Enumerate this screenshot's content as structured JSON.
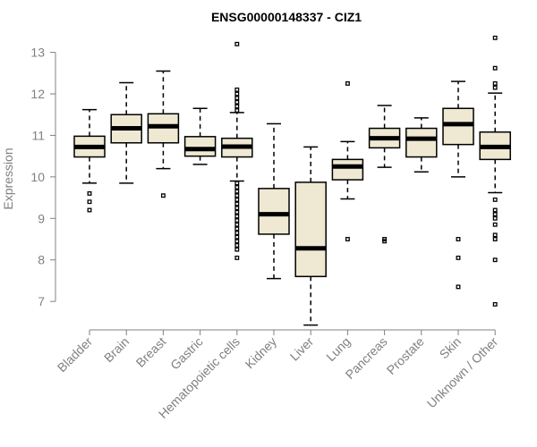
{
  "chart_data": {
    "type": "boxplot",
    "title": "ENSG00000148337 - CIZ1",
    "xlabel": "",
    "ylabel": "Expression",
    "ylim": [
      6.4,
      13.4
    ],
    "yticks": [
      7,
      8,
      9,
      10,
      11,
      12,
      13
    ],
    "grid": false,
    "colors": {
      "box_fill": "#efe8d2",
      "box_stroke": "#000000",
      "axis": "#808080",
      "title": "#000000"
    },
    "categories": [
      "Bladder",
      "Brain",
      "Breast",
      "Gastric",
      "Hematopoietic cells",
      "Kidney",
      "Liver",
      "Lung",
      "Pancreas",
      "Prostate",
      "Skin",
      "Unknown / Other"
    ],
    "boxes": [
      {
        "category": "Bladder",
        "whisker_low": 9.85,
        "q1": 10.48,
        "median": 10.72,
        "q3": 10.98,
        "whisker_high": 11.62,
        "outliers": [
          9.6,
          9.4,
          9.2
        ]
      },
      {
        "category": "Brain",
        "whisker_low": 9.85,
        "q1": 10.82,
        "median": 11.17,
        "q3": 11.5,
        "whisker_high": 12.27,
        "outliers": []
      },
      {
        "category": "Breast",
        "whisker_low": 10.2,
        "q1": 10.82,
        "median": 11.22,
        "q3": 11.52,
        "whisker_high": 12.55,
        "outliers": [
          9.55
        ]
      },
      {
        "category": "Gastric",
        "whisker_low": 10.3,
        "q1": 10.5,
        "median": 10.67,
        "q3": 10.97,
        "whisker_high": 11.65,
        "outliers": []
      },
      {
        "category": "Hematopoietic cells",
        "whisker_low": 9.9,
        "q1": 10.48,
        "median": 10.73,
        "q3": 10.93,
        "whisker_high": 11.55,
        "outliers": [
          13.2,
          12.1,
          12.0,
          11.9,
          11.8,
          11.7,
          11.6,
          9.85,
          9.75,
          9.65,
          9.55,
          9.45,
          9.35,
          9.25,
          9.15,
          9.05,
          8.95,
          8.85,
          8.75,
          8.65,
          8.55,
          8.45,
          8.35,
          8.25,
          8.05
        ]
      },
      {
        "category": "Kidney",
        "whisker_low": 7.55,
        "q1": 8.62,
        "median": 9.1,
        "q3": 9.72,
        "whisker_high": 11.28,
        "outliers": []
      },
      {
        "category": "Liver",
        "whisker_low": 6.43,
        "q1": 7.6,
        "median": 8.28,
        "q3": 9.87,
        "whisker_high": 10.72,
        "outliers": []
      },
      {
        "category": "Lung",
        "whisker_low": 9.47,
        "q1": 9.93,
        "median": 10.25,
        "q3": 10.42,
        "whisker_high": 10.85,
        "outliers": [
          12.25,
          8.5
        ]
      },
      {
        "category": "Pancreas",
        "whisker_low": 10.23,
        "q1": 10.7,
        "median": 10.93,
        "q3": 11.17,
        "whisker_high": 11.72,
        "outliers": [
          8.5,
          8.45
        ]
      },
      {
        "category": "Prostate",
        "whisker_low": 10.12,
        "q1": 10.48,
        "median": 10.92,
        "q3": 11.17,
        "whisker_high": 11.42,
        "outliers": []
      },
      {
        "category": "Skin",
        "whisker_low": 10.0,
        "q1": 10.78,
        "median": 11.27,
        "q3": 11.65,
        "whisker_high": 12.3,
        "outliers": [
          8.5,
          8.05,
          7.35
        ]
      },
      {
        "category": "Unknown / Other",
        "whisker_low": 9.62,
        "q1": 10.42,
        "median": 10.72,
        "q3": 11.08,
        "whisker_high": 12.02,
        "outliers": [
          13.35,
          12.62,
          12.25,
          12.15,
          9.45,
          9.2,
          9.1,
          9.0,
          8.85,
          8.6,
          8.5,
          8.0,
          6.93
        ]
      }
    ]
  }
}
